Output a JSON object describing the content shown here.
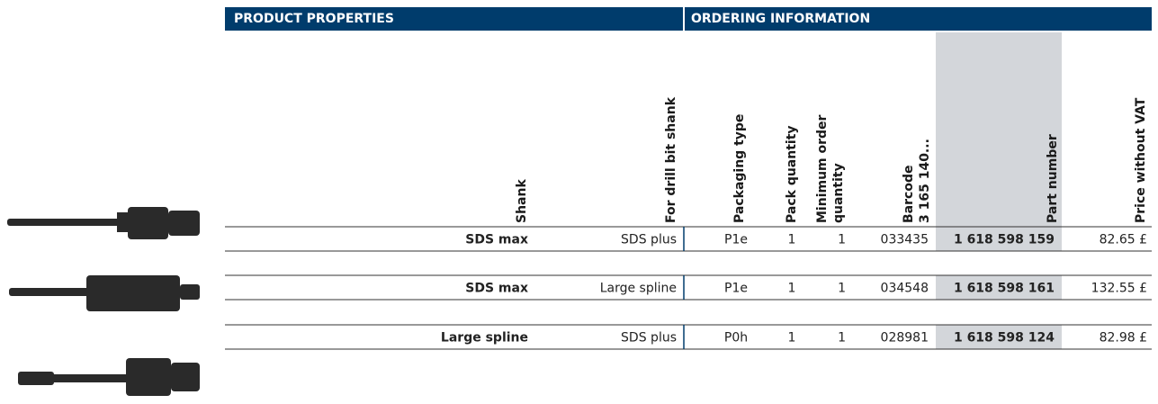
{
  "header": {
    "product_properties": "PRODUCT PROPERTIES",
    "ordering_information": "ORDERING INFORMATION"
  },
  "columns": [
    [
      "Shank"
    ],
    [
      "For drill bit shank"
    ],
    [
      "Packaging type"
    ],
    [
      "Pack quantity"
    ],
    [
      "Minimum order",
      "quantity"
    ],
    [
      "Barcode",
      "3 165 140..."
    ],
    [
      "Part number"
    ],
    [
      "Price without VAT"
    ]
  ],
  "rows": [
    [
      "SDS max",
      "SDS plus",
      "P1e",
      "1",
      "1",
      "033435",
      "1 618 598 159",
      "82.65 £"
    ],
    [
      "SDS max",
      "Large spline",
      "P1e",
      "1",
      "1",
      "034548",
      "1 618 598 161",
      "132.55 £"
    ],
    [
      "Large spline",
      "SDS plus",
      "P0h",
      "1",
      "1",
      "028981",
      "1 618 598 124",
      "82.98 £"
    ]
  ]
}
